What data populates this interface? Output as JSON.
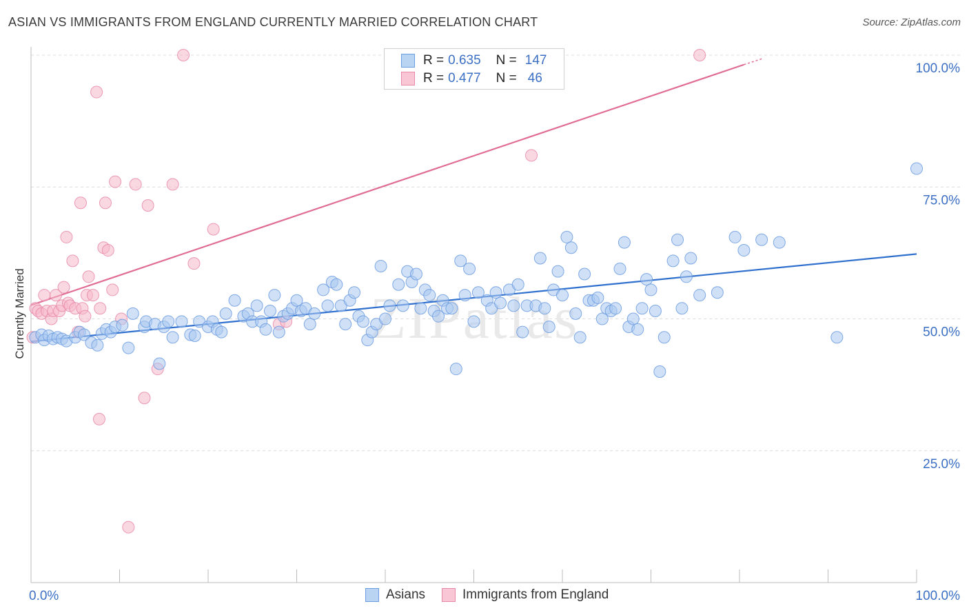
{
  "header": {
    "title": "ASIAN VS IMMIGRANTS FROM ENGLAND CURRENTLY MARRIED CORRELATION CHART",
    "source": "Source: ZipAtlas.com"
  },
  "watermark": "ZIPatlas",
  "legend_top": {
    "rows": [
      {
        "r_label": "R =",
        "r_value": "0.635",
        "n_label": "N =",
        "n_value": "147"
      },
      {
        "r_label": "R =",
        "r_value": "0.477",
        "n_label": "N =",
        "n_value": "46"
      }
    ]
  },
  "legend_bottom": {
    "items": [
      "Asians",
      "Immigrants from England"
    ]
  },
  "colors": {
    "asian_fill": "#a9c8f0",
    "asian_stroke": "#6b9be0",
    "asian_line": "#2f6fce",
    "eng_fill": "#f6b8cb",
    "eng_stroke": "#e888a8",
    "eng_line": "#e06c95",
    "axis_text": "#3b6fc4"
  },
  "chart_data": {
    "type": "scatter",
    "title": "ASIAN VS IMMIGRANTS FROM ENGLAND CURRENTLY MARRIED CORRELATION CHART",
    "xlabel": "",
    "ylabel": "Currently Married",
    "xlim": [
      0,
      100
    ],
    "ylim": [
      0,
      100
    ],
    "x_tick_labels": [
      "0.0%",
      "100.0%"
    ],
    "y_tick_labels": [
      "25.0%",
      "50.0%",
      "75.0%",
      "100.0%"
    ],
    "y_ticks": [
      25,
      50,
      75,
      100
    ],
    "grid": true,
    "legend_position": "top-center",
    "series": [
      {
        "name": "Asians",
        "R": 0.635,
        "N": 147,
        "trend": {
          "x": [
            0,
            100
          ],
          "y": [
            45.7,
            62.3
          ]
        },
        "points": [
          [
            0.5,
            46.5
          ],
          [
            1.2,
            47
          ],
          [
            1.5,
            46
          ],
          [
            2.0,
            46.8
          ],
          [
            2.5,
            46.2
          ],
          [
            3.0,
            46.5
          ],
          [
            3.5,
            46.2
          ],
          [
            4.0,
            45.8
          ],
          [
            5.0,
            46.5
          ],
          [
            5.5,
            47.5
          ],
          [
            6.0,
            47
          ],
          [
            6.8,
            45.5
          ],
          [
            7.5,
            45
          ],
          [
            8.0,
            47.2
          ],
          [
            8.5,
            48
          ],
          [
            9.0,
            47.5
          ],
          [
            9.5,
            48.5
          ],
          [
            10.3,
            48.8
          ],
          [
            11.0,
            44.5
          ],
          [
            11.5,
            51
          ],
          [
            12.8,
            48.5
          ],
          [
            13.0,
            49.5
          ],
          [
            14.0,
            49
          ],
          [
            14.5,
            41.5
          ],
          [
            15.0,
            48.5
          ],
          [
            15.5,
            49.5
          ],
          [
            16.0,
            46.5
          ],
          [
            17.0,
            49.5
          ],
          [
            18.0,
            47
          ],
          [
            18.5,
            46.8
          ],
          [
            19.0,
            49.5
          ],
          [
            20.0,
            48.5
          ],
          [
            20.5,
            49.5
          ],
          [
            21.0,
            48
          ],
          [
            21.5,
            47.5
          ],
          [
            22.0,
            51
          ],
          [
            23.0,
            53.5
          ],
          [
            24.0,
            50.5
          ],
          [
            24.5,
            51
          ],
          [
            25.0,
            49.5
          ],
          [
            25.5,
            52.5
          ],
          [
            26.0,
            49.5
          ],
          [
            26.5,
            48
          ],
          [
            27.0,
            51.5
          ],
          [
            27.5,
            54.5
          ],
          [
            28.0,
            47.5
          ],
          [
            28.5,
            50.5
          ],
          [
            29.0,
            51
          ],
          [
            29.5,
            52
          ],
          [
            30.0,
            53.5
          ],
          [
            30.5,
            51.5
          ],
          [
            31.0,
            52
          ],
          [
            31.5,
            49
          ],
          [
            32.0,
            51
          ],
          [
            33.0,
            55.5
          ],
          [
            33.5,
            52.5
          ],
          [
            34.0,
            57
          ],
          [
            34.5,
            56.5
          ],
          [
            35.0,
            52.5
          ],
          [
            35.5,
            49
          ],
          [
            36.0,
            53.5
          ],
          [
            36.5,
            55
          ],
          [
            37.0,
            50.5
          ],
          [
            37.5,
            49.5
          ],
          [
            38.0,
            46
          ],
          [
            38.5,
            47.5
          ],
          [
            39.0,
            49
          ],
          [
            39.5,
            60
          ],
          [
            40.0,
            50
          ],
          [
            40.5,
            52.5
          ],
          [
            41.5,
            56.5
          ],
          [
            42.0,
            52.5
          ],
          [
            42.5,
            59
          ],
          [
            43.0,
            57
          ],
          [
            43.5,
            58.5
          ],
          [
            44.0,
            52
          ],
          [
            44.5,
            55.5
          ],
          [
            45.0,
            54.5
          ],
          [
            45.5,
            51.5
          ],
          [
            46.0,
            50.5
          ],
          [
            46.5,
            53.5
          ],
          [
            47.0,
            52
          ],
          [
            47.5,
            52
          ],
          [
            48.0,
            40.5
          ],
          [
            48.5,
            61
          ],
          [
            49.0,
            54.5
          ],
          [
            49.5,
            59.5
          ],
          [
            50.0,
            49.5
          ],
          [
            50.5,
            55
          ],
          [
            51.5,
            53.5
          ],
          [
            52.0,
            52
          ],
          [
            52.5,
            55
          ],
          [
            53.0,
            53
          ],
          [
            54.0,
            55.5
          ],
          [
            54.5,
            52.5
          ],
          [
            55.0,
            56.5
          ],
          [
            55.5,
            47.5
          ],
          [
            56.0,
            52.5
          ],
          [
            57.0,
            52.5
          ],
          [
            57.5,
            61.5
          ],
          [
            58.0,
            52
          ],
          [
            58.5,
            48.5
          ],
          [
            59.0,
            55.5
          ],
          [
            59.5,
            59
          ],
          [
            60.0,
            54.5
          ],
          [
            60.5,
            65.5
          ],
          [
            61.0,
            63.5
          ],
          [
            61.5,
            51
          ],
          [
            62.0,
            46.5
          ],
          [
            62.5,
            58.5
          ],
          [
            63.0,
            53.5
          ],
          [
            63.5,
            53.5
          ],
          [
            64.0,
            54
          ],
          [
            64.5,
            50
          ],
          [
            65.0,
            52
          ],
          [
            65.5,
            51.5
          ],
          [
            66.0,
            52
          ],
          [
            66.5,
            59.5
          ],
          [
            67.0,
            64.5
          ],
          [
            67.5,
            48.5
          ],
          [
            68.0,
            50
          ],
          [
            68.5,
            48
          ],
          [
            69.0,
            52
          ],
          [
            69.5,
            57.5
          ],
          [
            70.0,
            55.5
          ],
          [
            70.5,
            51.5
          ],
          [
            71.0,
            40
          ],
          [
            71.5,
            46.5
          ],
          [
            72.5,
            61
          ],
          [
            73.0,
            65
          ],
          [
            73.5,
            52
          ],
          [
            74.0,
            58
          ],
          [
            74.5,
            61.5
          ],
          [
            75.5,
            54.5
          ],
          [
            77.5,
            55
          ],
          [
            79.5,
            65.5
          ],
          [
            80.5,
            63
          ],
          [
            82.5,
            65
          ],
          [
            84.5,
            64.5
          ],
          [
            91.0,
            46.5
          ],
          [
            100.0,
            78.5
          ]
        ]
      },
      {
        "name": "Immigrants from England",
        "R": 0.477,
        "N": 46,
        "trend": {
          "x": [
            0,
            80.5,
            82.5
          ],
          "y": [
            52.6,
            98.2,
            99.3
          ]
        },
        "points": [
          [
            0.2,
            46.5
          ],
          [
            0.5,
            52
          ],
          [
            0.8,
            51.5
          ],
          [
            1.2,
            51
          ],
          [
            1.5,
            54.5
          ],
          [
            1.8,
            51.5
          ],
          [
            2.3,
            50
          ],
          [
            2.5,
            51.5
          ],
          [
            2.8,
            54.5
          ],
          [
            3.2,
            51.5
          ],
          [
            3.5,
            52.5
          ],
          [
            3.7,
            56
          ],
          [
            4.0,
            65.5
          ],
          [
            4.2,
            53
          ],
          [
            4.4,
            52.5
          ],
          [
            4.7,
            61
          ],
          [
            5.0,
            52
          ],
          [
            5.3,
            47.5
          ],
          [
            5.6,
            72
          ],
          [
            5.8,
            52
          ],
          [
            6.1,
            50.5
          ],
          [
            6.3,
            54.5
          ],
          [
            6.5,
            58
          ],
          [
            7.0,
            54.5
          ],
          [
            7.4,
            93
          ],
          [
            7.7,
            31
          ],
          [
            7.8,
            52
          ],
          [
            8.2,
            63.5
          ],
          [
            8.4,
            72
          ],
          [
            8.7,
            63
          ],
          [
            9.2,
            55.5
          ],
          [
            9.5,
            76
          ],
          [
            10.2,
            50
          ],
          [
            11.0,
            10.5
          ],
          [
            11.8,
            75.5
          ],
          [
            12.8,
            35
          ],
          [
            13.2,
            71.5
          ],
          [
            14.3,
            40.5
          ],
          [
            16.0,
            75.5
          ],
          [
            17.2,
            100
          ],
          [
            18.4,
            60.5
          ],
          [
            20.6,
            67
          ],
          [
            28.0,
            49
          ],
          [
            28.8,
            49.5
          ],
          [
            56.5,
            81
          ],
          [
            75.5,
            100
          ]
        ]
      }
    ]
  }
}
